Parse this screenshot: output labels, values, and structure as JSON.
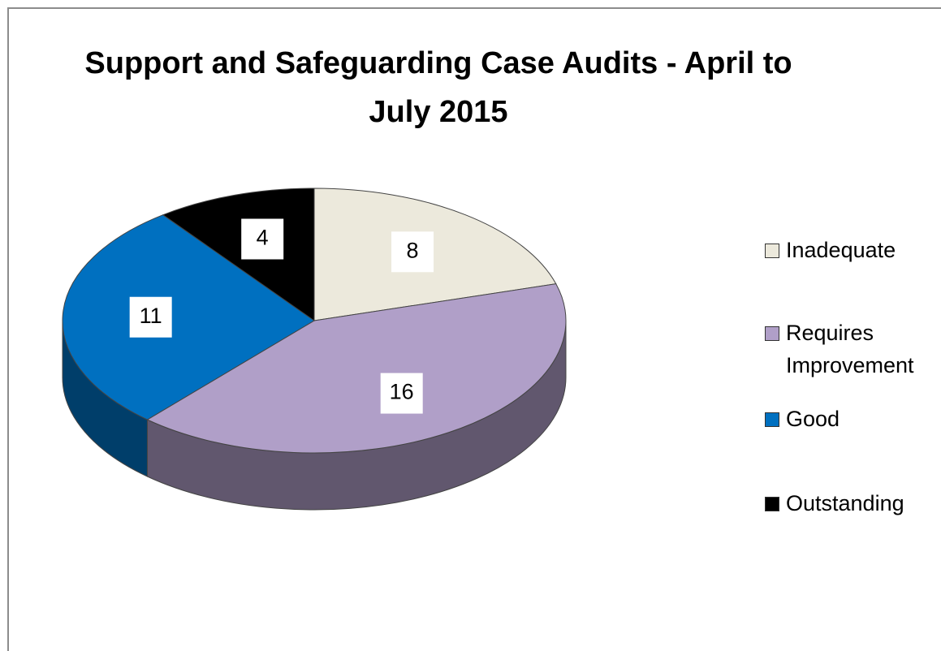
{
  "chart_data": {
    "type": "pie",
    "title": "Support and Safeguarding Case Audits - April to July 2015",
    "categories": [
      "Inadequate",
      "Requires Improvement",
      "Good",
      "Outstanding"
    ],
    "values": [
      8,
      16,
      11,
      4
    ],
    "colors": [
      "#ece9dc",
      "#b09fc8",
      "#0070c0",
      "#000000"
    ],
    "legend": "right"
  }
}
